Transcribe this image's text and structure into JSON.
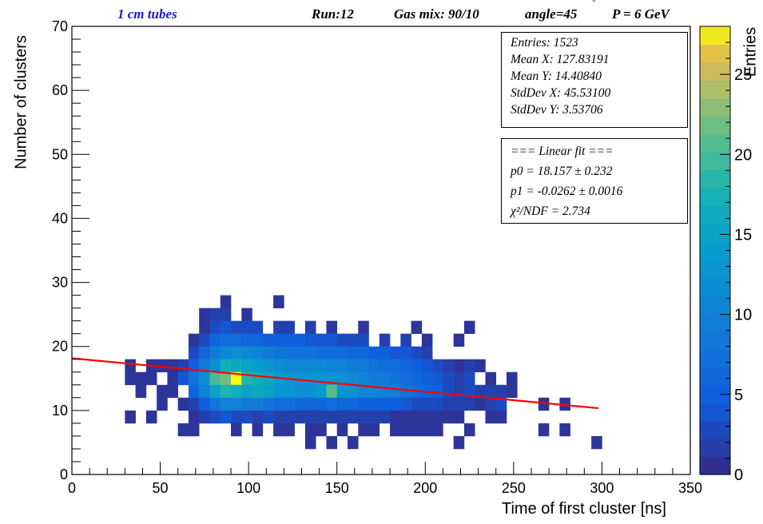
{
  "header": {
    "detector": "1 cm tubes",
    "run": "Run:12",
    "gas": "Gas mix: 90/10",
    "angle": "angle=45",
    "angle_unit": "°",
    "momentum": "P = 6 GeV"
  },
  "stats_box": {
    "entries": "Entries: 1523",
    "mean_x": "Mean X: 127.83191",
    "mean_y": "Mean Y: 14.40840",
    "std_x": "StdDev X: 45.53100",
    "std_y": "StdDev Y: 3.53706"
  },
  "fit_box": {
    "title": "=== Linear fit ===",
    "p0": "p0 = 18.157  ± 0.232",
    "p1": "p1 = -0.0262  ± 0.0016",
    "chi2": "χ²/NDF = 2.734"
  },
  "chart_data": {
    "type": "heatmap",
    "xlabel": "Time of first cluster [ns]",
    "ylabel": "Number of clusters",
    "zlabel": "Entries",
    "xlim": [
      0,
      350
    ],
    "ylim": [
      0,
      70
    ],
    "zlim": [
      0,
      28
    ],
    "x_ticks": [
      "0",
      "50",
      "100",
      "150",
      "200",
      "250",
      "300",
      "350"
    ],
    "y_ticks": [
      "0",
      "10",
      "20",
      "30",
      "40",
      "50",
      "60",
      "70"
    ],
    "z_ticks": [
      "0",
      "5",
      "10",
      "15",
      "20",
      "25"
    ],
    "x_bin_width": 6,
    "y_bin_width": 2,
    "bins": [
      [
        30,
        9,
        1
      ],
      [
        30,
        15,
        1
      ],
      [
        30,
        17,
        1
      ],
      [
        36,
        15,
        1
      ],
      [
        36,
        13,
        1
      ],
      [
        42,
        15,
        1
      ],
      [
        42,
        17,
        1
      ],
      [
        42,
        9,
        1
      ],
      [
        48,
        17,
        1
      ],
      [
        48,
        13,
        1
      ],
      [
        48,
        11,
        1
      ],
      [
        54,
        17,
        1
      ],
      [
        54,
        15,
        1
      ],
      [
        54,
        13,
        1
      ],
      [
        60,
        17,
        2
      ],
      [
        60,
        15,
        4
      ],
      [
        60,
        11,
        1
      ],
      [
        60,
        7,
        1
      ],
      [
        66,
        21,
        1
      ],
      [
        66,
        19,
        3
      ],
      [
        66,
        17,
        5
      ],
      [
        66,
        15,
        8
      ],
      [
        66,
        13,
        6
      ],
      [
        66,
        11,
        2
      ],
      [
        66,
        9,
        1
      ],
      [
        66,
        7,
        1
      ],
      [
        72,
        25,
        1
      ],
      [
        72,
        23,
        1
      ],
      [
        72,
        21,
        3
      ],
      [
        72,
        19,
        6
      ],
      [
        72,
        17,
        9
      ],
      [
        72,
        15,
        12
      ],
      [
        72,
        13,
        10
      ],
      [
        72,
        11,
        5
      ],
      [
        72,
        9,
        2
      ],
      [
        78,
        25,
        2
      ],
      [
        78,
        23,
        3
      ],
      [
        78,
        21,
        6
      ],
      [
        78,
        19,
        9
      ],
      [
        78,
        17,
        12
      ],
      [
        78,
        15,
        20
      ],
      [
        78,
        13,
        15
      ],
      [
        78,
        11,
        8
      ],
      [
        78,
        9,
        3
      ],
      [
        84,
        27,
        1
      ],
      [
        84,
        25,
        2
      ],
      [
        84,
        23,
        4
      ],
      [
        84,
        21,
        7
      ],
      [
        84,
        19,
        11
      ],
      [
        84,
        17,
        17
      ],
      [
        84,
        15,
        22
      ],
      [
        84,
        13,
        18
      ],
      [
        84,
        11,
        10
      ],
      [
        84,
        9,
        4
      ],
      [
        90,
        23,
        3
      ],
      [
        90,
        21,
        7
      ],
      [
        90,
        19,
        12
      ],
      [
        90,
        17,
        16
      ],
      [
        90,
        15,
        28
      ],
      [
        90,
        13,
        17
      ],
      [
        90,
        11,
        10
      ],
      [
        90,
        9,
        3
      ],
      [
        90,
        7,
        1
      ],
      [
        96,
        25,
        1
      ],
      [
        96,
        23,
        3
      ],
      [
        96,
        21,
        6
      ],
      [
        96,
        19,
        11
      ],
      [
        96,
        17,
        15
      ],
      [
        96,
        15,
        18
      ],
      [
        96,
        13,
        15
      ],
      [
        96,
        11,
        9
      ],
      [
        96,
        9,
        3
      ],
      [
        102,
        23,
        3
      ],
      [
        102,
        21,
        6
      ],
      [
        102,
        19,
        10
      ],
      [
        102,
        17,
        14
      ],
      [
        102,
        15,
        17
      ],
      [
        102,
        13,
        16
      ],
      [
        102,
        11,
        9
      ],
      [
        102,
        9,
        2
      ],
      [
        102,
        7,
        1
      ],
      [
        108,
        21,
        5
      ],
      [
        108,
        19,
        9
      ],
      [
        108,
        17,
        13
      ],
      [
        108,
        15,
        16
      ],
      [
        108,
        13,
        15
      ],
      [
        108,
        11,
        8
      ],
      [
        108,
        9,
        3
      ],
      [
        114,
        27,
        1
      ],
      [
        114,
        23,
        2
      ],
      [
        114,
        21,
        5
      ],
      [
        114,
        19,
        8
      ],
      [
        114,
        17,
        12
      ],
      [
        114,
        15,
        14
      ],
      [
        114,
        13,
        13
      ],
      [
        114,
        11,
        7
      ],
      [
        114,
        9,
        2
      ],
      [
        114,
        7,
        1
      ],
      [
        120,
        23,
        2
      ],
      [
        120,
        21,
        5
      ],
      [
        120,
        19,
        8
      ],
      [
        120,
        17,
        11
      ],
      [
        120,
        15,
        13
      ],
      [
        120,
        13,
        13
      ],
      [
        120,
        11,
        7
      ],
      [
        120,
        9,
        2
      ],
      [
        120,
        7,
        1
      ],
      [
        126,
        21,
        5
      ],
      [
        126,
        19,
        8
      ],
      [
        126,
        17,
        11
      ],
      [
        126,
        15,
        13
      ],
      [
        126,
        13,
        12
      ],
      [
        126,
        11,
        6
      ],
      [
        126,
        9,
        2
      ],
      [
        132,
        23,
        2
      ],
      [
        132,
        21,
        4
      ],
      [
        132,
        19,
        8
      ],
      [
        132,
        17,
        11
      ],
      [
        132,
        15,
        13
      ],
      [
        132,
        13,
        12
      ],
      [
        132,
        11,
        6
      ],
      [
        132,
        9,
        2
      ],
      [
        132,
        7,
        1
      ],
      [
        132,
        5,
        1
      ],
      [
        138,
        21,
        4
      ],
      [
        138,
        19,
        7
      ],
      [
        138,
        17,
        11
      ],
      [
        138,
        15,
        13
      ],
      [
        138,
        13,
        14
      ],
      [
        138,
        11,
        6
      ],
      [
        138,
        9,
        2
      ],
      [
        138,
        7,
        1
      ],
      [
        144,
        23,
        1
      ],
      [
        144,
        21,
        4
      ],
      [
        144,
        19,
        7
      ],
      [
        144,
        17,
        10
      ],
      [
        144,
        15,
        13
      ],
      [
        144,
        13,
        21
      ],
      [
        144,
        11,
        7
      ],
      [
        144,
        9,
        2
      ],
      [
        144,
        5,
        1
      ],
      [
        150,
        21,
        3
      ],
      [
        150,
        19,
        7
      ],
      [
        150,
        17,
        10
      ],
      [
        150,
        15,
        12
      ],
      [
        150,
        13,
        13
      ],
      [
        150,
        11,
        6
      ],
      [
        150,
        9,
        2
      ],
      [
        150,
        7,
        1
      ],
      [
        156,
        21,
        3
      ],
      [
        156,
        19,
        6
      ],
      [
        156,
        17,
        9
      ],
      [
        156,
        15,
        11
      ],
      [
        156,
        13,
        12
      ],
      [
        156,
        11,
        6
      ],
      [
        156,
        9,
        2
      ],
      [
        156,
        5,
        1
      ],
      [
        162,
        23,
        1
      ],
      [
        162,
        21,
        3
      ],
      [
        162,
        19,
        6
      ],
      [
        162,
        17,
        9
      ],
      [
        162,
        15,
        10
      ],
      [
        162,
        13,
        11
      ],
      [
        162,
        11,
        5
      ],
      [
        162,
        9,
        2
      ],
      [
        162,
        7,
        1
      ],
      [
        168,
        19,
        5
      ],
      [
        168,
        17,
        8
      ],
      [
        168,
        15,
        9
      ],
      [
        168,
        13,
        11
      ],
      [
        168,
        11,
        5
      ],
      [
        168,
        9,
        2
      ],
      [
        168,
        7,
        1
      ],
      [
        174,
        21,
        2
      ],
      [
        174,
        19,
        5
      ],
      [
        174,
        17,
        7
      ],
      [
        174,
        15,
        9
      ],
      [
        174,
        13,
        10
      ],
      [
        174,
        11,
        5
      ],
      [
        174,
        9,
        2
      ],
      [
        180,
        19,
        4
      ],
      [
        180,
        17,
        7
      ],
      [
        180,
        15,
        8
      ],
      [
        180,
        13,
        10
      ],
      [
        180,
        11,
        5
      ],
      [
        180,
        9,
        1
      ],
      [
        180,
        7,
        1
      ],
      [
        186,
        21,
        2
      ],
      [
        186,
        19,
        4
      ],
      [
        186,
        17,
        6
      ],
      [
        186,
        15,
        7
      ],
      [
        186,
        13,
        8
      ],
      [
        186,
        11,
        4
      ],
      [
        186,
        9,
        1
      ],
      [
        186,
        7,
        1
      ],
      [
        192,
        23,
        1
      ],
      [
        192,
        19,
        3
      ],
      [
        192,
        17,
        5
      ],
      [
        192,
        15,
        6
      ],
      [
        192,
        13,
        7
      ],
      [
        192,
        11,
        3
      ],
      [
        192,
        9,
        1
      ],
      [
        192,
        7,
        1
      ],
      [
        198,
        21,
        1
      ],
      [
        198,
        19,
        2
      ],
      [
        198,
        17,
        4
      ],
      [
        198,
        15,
        5
      ],
      [
        198,
        13,
        6
      ],
      [
        198,
        11,
        3
      ],
      [
        198,
        9,
        1
      ],
      [
        198,
        7,
        1
      ],
      [
        204,
        17,
        3
      ],
      [
        204,
        15,
        4
      ],
      [
        204,
        13,
        5
      ],
      [
        204,
        11,
        3
      ],
      [
        204,
        9,
        1
      ],
      [
        204,
        7,
        1
      ],
      [
        210,
        17,
        2
      ],
      [
        210,
        15,
        3
      ],
      [
        210,
        13,
        3
      ],
      [
        210,
        11,
        2
      ],
      [
        210,
        9,
        1
      ],
      [
        216,
        21,
        1
      ],
      [
        216,
        17,
        1
      ],
      [
        216,
        15,
        2
      ],
      [
        216,
        13,
        2
      ],
      [
        216,
        11,
        2
      ],
      [
        216,
        9,
        1
      ],
      [
        216,
        5,
        1
      ],
      [
        222,
        23,
        1
      ],
      [
        222,
        17,
        2
      ],
      [
        222,
        15,
        3
      ],
      [
        222,
        13,
        3
      ],
      [
        222,
        11,
        2
      ],
      [
        222,
        7,
        1
      ],
      [
        228,
        17,
        1
      ],
      [
        228,
        13,
        2
      ],
      [
        228,
        11,
        1
      ],
      [
        234,
        15,
        1
      ],
      [
        234,
        13,
        2
      ],
      [
        234,
        11,
        2
      ],
      [
        234,
        9,
        1
      ],
      [
        240,
        13,
        2
      ],
      [
        240,
        11,
        3
      ],
      [
        240,
        9,
        1
      ],
      [
        246,
        15,
        1
      ],
      [
        246,
        13,
        1
      ],
      [
        264,
        11,
        1
      ],
      [
        264,
        7,
        1
      ],
      [
        276,
        11,
        1
      ],
      [
        276,
        7,
        1
      ],
      [
        294,
        5,
        1
      ]
    ],
    "fit_line": {
      "p0": 18.157,
      "p1": -0.0262,
      "x_range": [
        0,
        298
      ]
    }
  },
  "colors": {
    "fit_line": "#ff0000",
    "header_blue": "#1a1acc"
  }
}
